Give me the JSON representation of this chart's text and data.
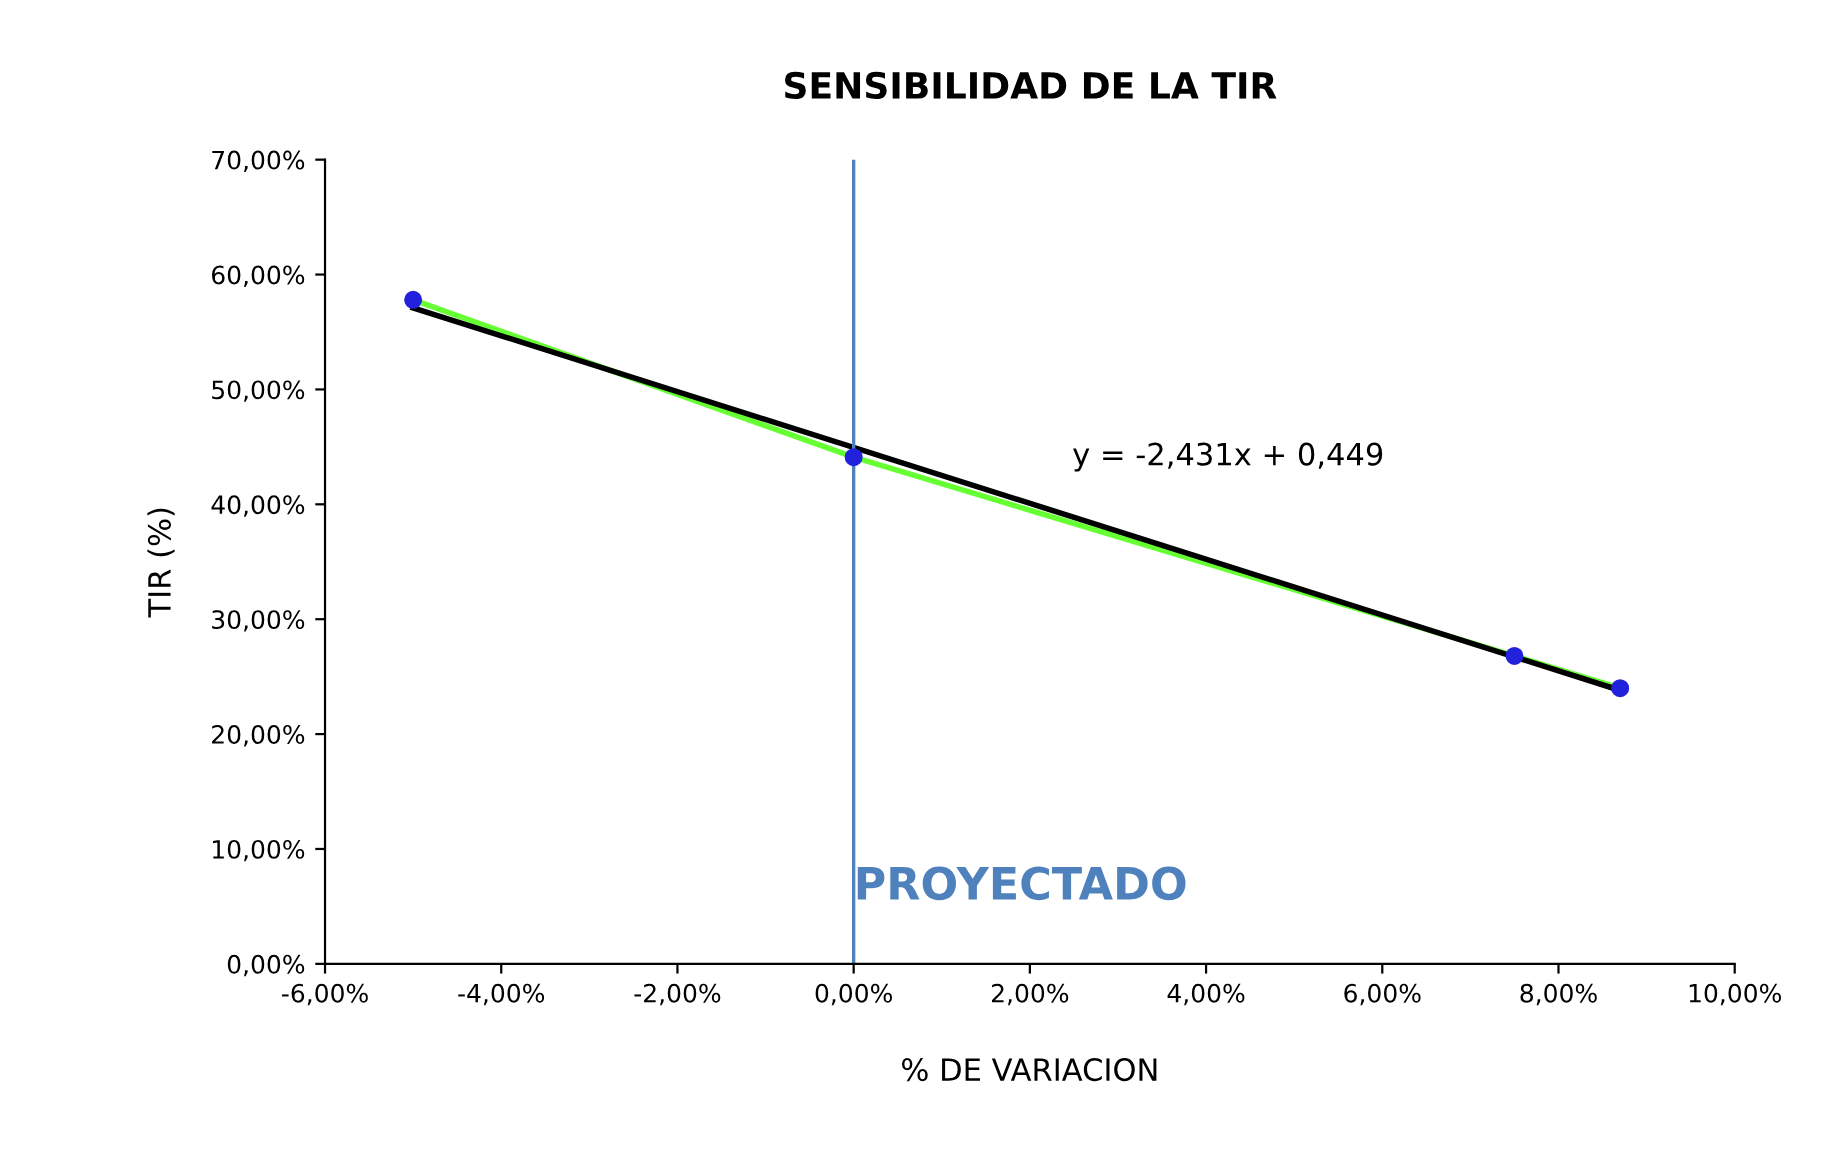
{
  "chart_data": {
    "type": "line",
    "title": "SENSIBILIDAD DE LA TIR",
    "xlabel": "% DE VARIACION",
    "ylabel": "TIR (%)",
    "x": [
      -5,
      0,
      7.5,
      8.7
    ],
    "series": [
      {
        "color": "#66ff33",
        "values": [
          57.8,
          44.1,
          26.8,
          24.0
        ],
        "marker": "none"
      },
      {
        "color": "#000000",
        "x": [
          -5,
          8.7
        ],
        "values": [
          57.1,
          23.8
        ],
        "marker": "none"
      },
      {
        "type": "scatter",
        "color": "#2222dd",
        "values": [
          57.8,
          44.1,
          26.8,
          24.0
        ],
        "marker": "circle"
      }
    ],
    "annotations": [
      "y = -2,431x + 0,449"
    ],
    "ref_lines": [
      {
        "axis": "x",
        "value": 0,
        "label": "PROYECTADO",
        "color": "#4f81bd"
      }
    ],
    "xlim": [
      -6,
      10
    ],
    "ylim": [
      0,
      70
    ],
    "xticks": [
      {
        "value": -6,
        "label": "-6,00%"
      },
      {
        "value": -4,
        "label": "-4,00%"
      },
      {
        "value": -2,
        "label": "-2,00%"
      },
      {
        "value": 0,
        "label": "0,00%"
      },
      {
        "value": 2,
        "label": "2,00%"
      },
      {
        "value": 4,
        "label": "4,00%"
      },
      {
        "value": 6,
        "label": "6,00%"
      },
      {
        "value": 8,
        "label": "8,00%"
      },
      {
        "value": 10,
        "label": "10,00%"
      }
    ],
    "yticks": [
      {
        "value": 0,
        "label": "0,00%"
      },
      {
        "value": 10,
        "label": "10,00%"
      },
      {
        "value": 20,
        "label": "20,00%"
      },
      {
        "value": 30,
        "label": "30,00%"
      },
      {
        "value": 40,
        "label": "40,00%"
      },
      {
        "value": 50,
        "label": "50,00%"
      },
      {
        "value": 60,
        "label": "60,00%"
      },
      {
        "value": 70,
        "label": "70,00%"
      }
    ],
    "grid": false,
    "legend": false
  }
}
